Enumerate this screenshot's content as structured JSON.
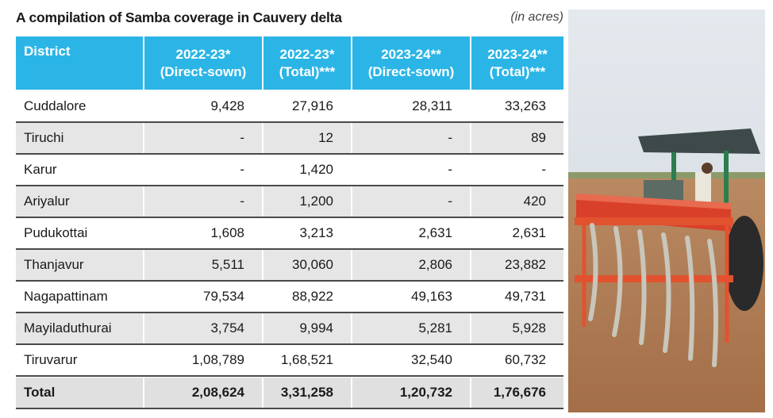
{
  "title": "A compilation of Samba coverage in Cauvery delta",
  "unit": "(in acres)",
  "table": {
    "headers": [
      [
        "District"
      ],
      [
        "2022-23*",
        "(Direct-sown)"
      ],
      [
        "2022-23*",
        "(Total)***"
      ],
      [
        "2023-24**",
        "(Direct-sown)"
      ],
      [
        "2023-24**",
        "(Total)***"
      ]
    ],
    "rows": [
      [
        "Cuddalore",
        "9,428",
        "27,916",
        "28,311",
        "33,263"
      ],
      [
        "Tiruchi",
        "-",
        "12",
        "-",
        "89"
      ],
      [
        "Karur",
        "-",
        "1,420",
        "-",
        "-"
      ],
      [
        "Ariyalur",
        "-",
        "1,200",
        "-",
        "420"
      ],
      [
        "Pudukottai",
        "1,608",
        "3,213",
        "2,631",
        "2,631"
      ],
      [
        "Thanjavur",
        "5,511",
        "30,060",
        "2,806",
        "23,882"
      ],
      [
        "Nagapattinam",
        "79,534",
        "88,922",
        "49,163",
        "49,731"
      ],
      [
        "Mayiladuthurai",
        "3,754",
        "9,994",
        "5,281",
        "5,928"
      ],
      [
        "Tiruvarur",
        "1,08,789",
        "1,68,521",
        "32,540",
        "60,732"
      ]
    ],
    "total": [
      "Total",
      "2,08,624",
      "3,31,258",
      "1,20,732",
      "1,76,676"
    ]
  }
}
